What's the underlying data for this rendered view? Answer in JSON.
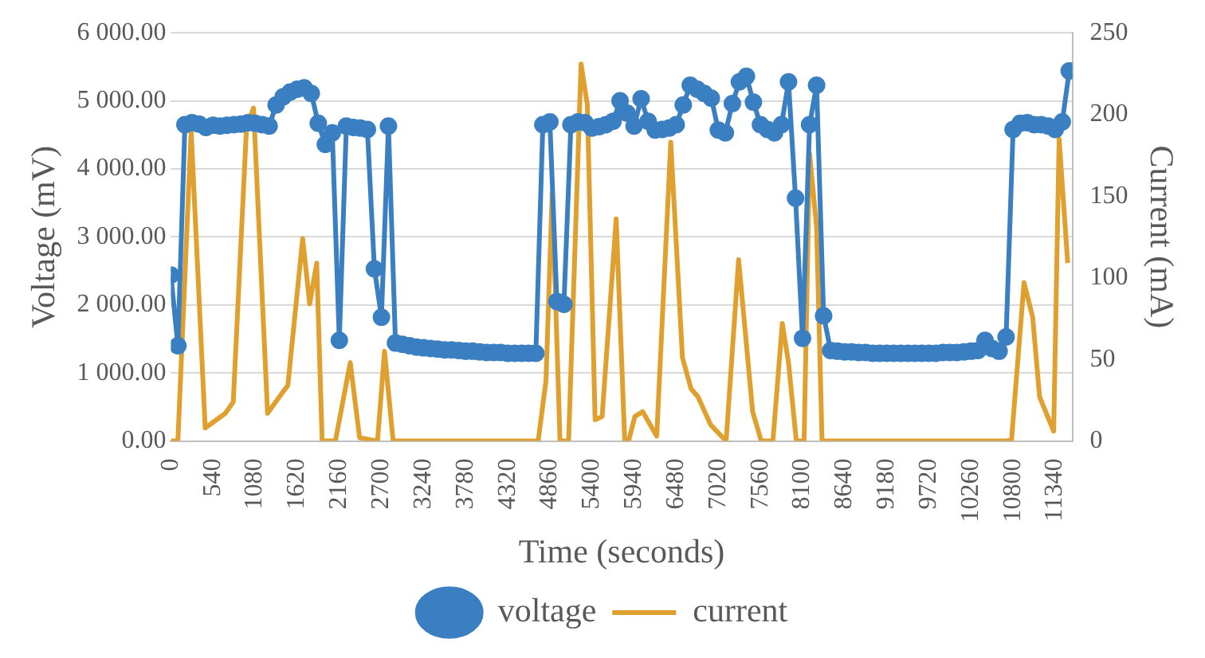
{
  "chart_data": {
    "type": "line",
    "xlabel": "Time (seconds)",
    "ylabel": "Voltage (mV)",
    "y2label": "Current (mA)",
    "xlim": [
      0,
      11560
    ],
    "xticks": [
      0,
      540,
      1080,
      1620,
      2160,
      2700,
      3240,
      3780,
      4320,
      4860,
      5400,
      5940,
      6480,
      7020,
      7560,
      8100,
      8640,
      9180,
      9720,
      10260,
      10800,
      11340
    ],
    "ylim": [
      0,
      6000
    ],
    "yticks": [
      {
        "value": 0,
        "label": "0.00"
      },
      {
        "value": 1000,
        "label": "1 000.00"
      },
      {
        "value": 2000,
        "label": "2 000.00"
      },
      {
        "value": 3000,
        "label": "3 000.00"
      },
      {
        "value": 4000,
        "label": "4 000.00"
      },
      {
        "value": 5000,
        "label": "5 000.00"
      },
      {
        "value": 6000,
        "label": "6 000.00"
      }
    ],
    "y2lim": [
      0,
      250
    ],
    "y2ticks": [
      0,
      50,
      100,
      150,
      200,
      250
    ],
    "grid": "y",
    "legend": "bottom",
    "series": [
      {
        "name": "voltage",
        "color": "#3a7fc1",
        "marker": "circle",
        "x": [
          0,
          90,
          180,
          270,
          360,
          450,
          540,
          630,
          720,
          810,
          900,
          990,
          1080,
          1170,
          1260,
          1350,
          1440,
          1530,
          1620,
          1710,
          1800,
          1890,
          1980,
          2070,
          2160,
          2250,
          2340,
          2430,
          2520,
          2610,
          2700,
          2790,
          2880,
          2970,
          3060,
          3150,
          3240,
          3330,
          3420,
          3510,
          3600,
          3690,
          3780,
          3870,
          3960,
          4050,
          4140,
          4230,
          4320,
          4410,
          4500,
          4590,
          4680,
          4770,
          4860,
          4950,
          5040,
          5130,
          5220,
          5310,
          5400,
          5490,
          5580,
          5670,
          5760,
          5850,
          5940,
          6030,
          6120,
          6210,
          6300,
          6390,
          6480,
          6570,
          6660,
          6750,
          6840,
          6930,
          7020,
          7110,
          7200,
          7290,
          7380,
          7470,
          7560,
          7650,
          7740,
          7830,
          7920,
          8010,
          8100,
          8190,
          8280,
          8370,
          8460,
          8550,
          8640,
          8730,
          8820,
          8910,
          9000,
          9090,
          9180,
          9270,
          9360,
          9450,
          9540,
          9630,
          9720,
          9810,
          9900,
          9990,
          10080,
          10170,
          10260,
          10350,
          10440,
          10530,
          10620,
          10710,
          10800,
          10890,
          10980,
          11070,
          11160,
          11250,
          11340,
          11430,
          11520
        ],
        "values": [
          2440,
          1400,
          4650,
          4680,
          4660,
          4610,
          4640,
          4630,
          4640,
          4650,
          4660,
          4680,
          4670,
          4650,
          4630,
          4940,
          5060,
          5130,
          5170,
          5190,
          5110,
          4670,
          4360,
          4530,
          1480,
          4630,
          4610,
          4600,
          4580,
          2530,
          1820,
          4630,
          1440,
          1420,
          1400,
          1380,
          1370,
          1360,
          1350,
          1340,
          1340,
          1330,
          1320,
          1320,
          1310,
          1300,
          1300,
          1300,
          1290,
          1290,
          1290,
          1290,
          1290,
          4650,
          4690,
          2050,
          2010,
          4650,
          4690,
          4680,
          4600,
          4620,
          4650,
          4700,
          5000,
          4820,
          4630,
          5030,
          4700,
          4570,
          4580,
          4600,
          4650,
          4940,
          5230,
          5170,
          5110,
          5040,
          4570,
          4530,
          4960,
          5280,
          5360,
          4980,
          4650,
          4580,
          4530,
          4650,
          5280,
          3570,
          1510,
          4650,
          5230,
          1840,
          1330,
          1320,
          1310,
          1310,
          1300,
          1300,
          1290,
          1290,
          1290,
          1290,
          1290,
          1290,
          1290,
          1290,
          1290,
          1290,
          1300,
          1300,
          1300,
          1310,
          1320,
          1330,
          1480,
          1360,
          1320,
          1530,
          4580,
          4670,
          4680,
          4650,
          4650,
          4630,
          4580,
          4690,
          5440
        ]
      },
      {
        "name": "current",
        "color": "#e0a030",
        "marker": "none",
        "axis": "y2",
        "x": [
          0,
          90,
          260,
          370,
          440,
          700,
          800,
          970,
          1060,
          1240,
          1420,
          1500,
          1690,
          1780,
          1870,
          1940,
          2110,
          2300,
          2420,
          2650,
          2740,
          2850,
          4710,
          4810,
          4890,
          4990,
          5100,
          5260,
          5340,
          5440,
          5530,
          5710,
          5820,
          5870,
          5950,
          6050,
          6230,
          6410,
          6560,
          6670,
          6760,
          6920,
          7120,
          7280,
          7460,
          7570,
          7720,
          7840,
          7920,
          8020,
          8120,
          8190,
          8280,
          8350,
          10720,
          10780,
          10940,
          11050,
          11140,
          11320,
          11390,
          11500
        ],
        "values": [
          0,
          0,
          190,
          79,
          8,
          17,
          24,
          192,
          204,
          17,
          29,
          34,
          124,
          84,
          109,
          0,
          0,
          48,
          2,
          0,
          55,
          0,
          0,
          37,
          152,
          0,
          0,
          231,
          206,
          13,
          15,
          136,
          0,
          0,
          15,
          18,
          3,
          183,
          51,
          32,
          27,
          10,
          0,
          111,
          18,
          0,
          0,
          72,
          48,
          0,
          0,
          176,
          131,
          0,
          0,
          1,
          97,
          76,
          27,
          6,
          185,
          109
        ]
      }
    ]
  }
}
